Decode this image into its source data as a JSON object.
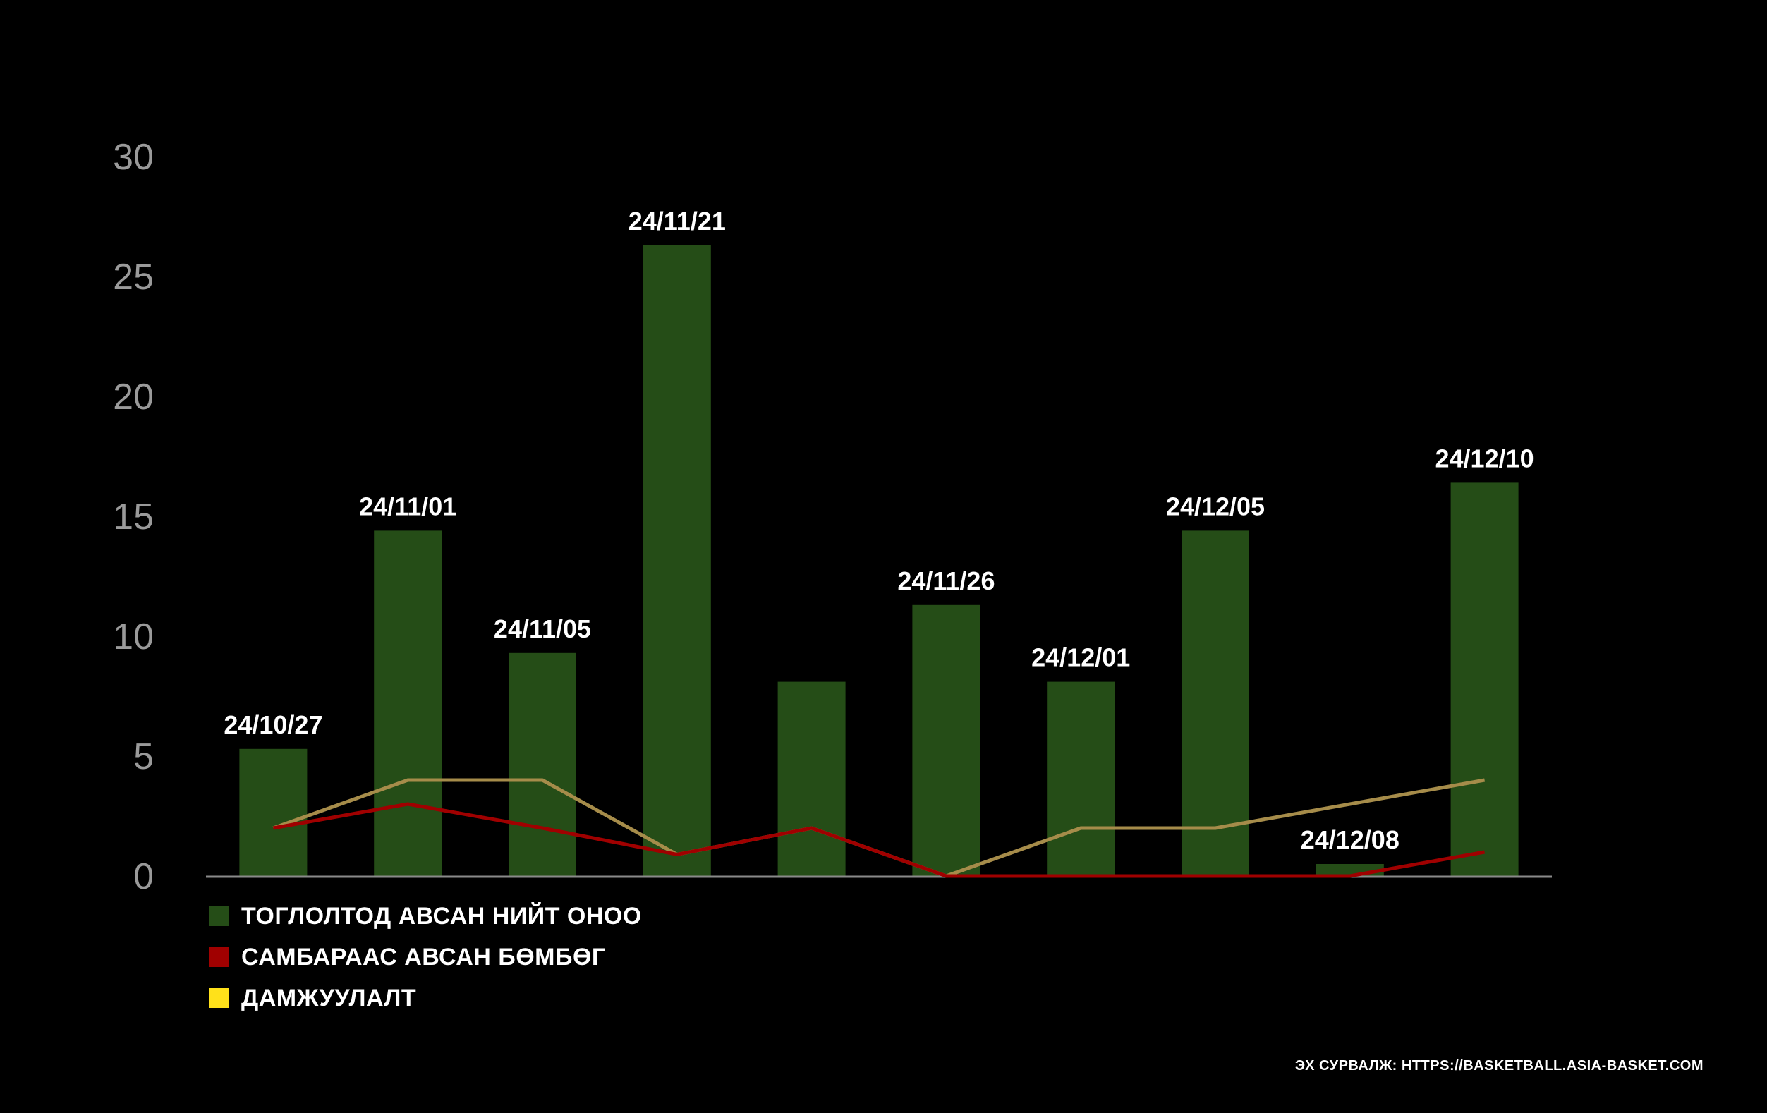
{
  "chart_data": {
    "type": "bar",
    "categories": [
      "24/10/27",
      "24/11/01",
      "24/11/05",
      "24/11/21",
      "",
      "24/11/26",
      "24/12/01",
      "24/12/05",
      "24/12/08",
      "24/12/10"
    ],
    "ylim": [
      0,
      30
    ],
    "yticks": [
      0,
      5,
      10,
      15,
      20,
      25,
      30
    ],
    "series": [
      {
        "name": "ТОГЛОЛТОД АВСАН НИЙТ ОНОО",
        "kind": "bar",
        "color": "#254d17",
        "values": [
          5.3,
          14.4,
          9.3,
          26.3,
          8.1,
          11.3,
          8.1,
          14.4,
          0.5,
          16.4
        ]
      },
      {
        "name": "САМБАРААС АВСАН БӨМБӨГ",
        "kind": "line",
        "color": "#a00000",
        "values": [
          2,
          3,
          2,
          0.9,
          2,
          0,
          0,
          0,
          0,
          1
        ]
      },
      {
        "name": "ДАМЖУУЛАЛТ",
        "kind": "line",
        "color": "#a68c4a",
        "legend_color": "#ffe11a",
        "values": [
          2,
          4,
          4,
          0.9,
          2,
          0,
          2,
          2,
          3,
          4
        ]
      }
    ],
    "title": "",
    "xlabel": "",
    "ylabel": ""
  },
  "source_text": "ЭХ СУРВАЛЖ: HTTPS://BASKETBALL.ASIA-BASKET.COM"
}
